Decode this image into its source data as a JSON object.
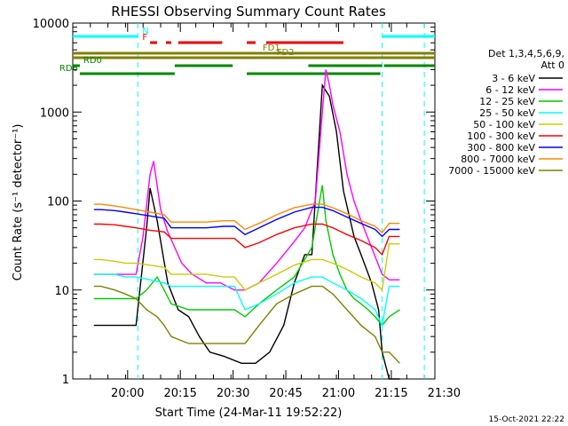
{
  "chart_data": {
    "type": "line",
    "title": "RHESSI Observing Summary Count Rates",
    "xlabel": "Start Time (24-Mar-11 19:52:22)",
    "ylabel": "Count Rate (s⁻¹ detector⁻¹)",
    "y_scale": "log",
    "xlim_min": [
      -8,
      95
    ],
    "ylim": [
      1,
      10000
    ],
    "x_ticks_min": [
      7.6,
      22.6,
      37.6,
      52.6,
      67.6,
      82.6,
      97.6
    ],
    "x_tick_labels": [
      "20:00",
      "20:15",
      "20:30",
      "20:45",
      "21:00",
      "21:15",
      "21:30"
    ],
    "y_ticks": [
      1,
      10,
      100,
      1000,
      10000
    ],
    "y_tick_labels": [
      "1",
      "10",
      "100",
      "1000",
      "10000"
    ],
    "legend_header": [
      "Det 1,3,4,5,6,9,",
      "Att 0"
    ],
    "series": [
      {
        "name": "3 - 6 keV",
        "color": "#000000",
        "x": [
          -2,
          0,
          4,
          7,
          10,
          13,
          14,
          16,
          19,
          22,
          25,
          28,
          31,
          35,
          40,
          44,
          48,
          52,
          55,
          58,
          60,
          63,
          65,
          67,
          69,
          72,
          74,
          77,
          79,
          80,
          82,
          85
        ],
        "y": [
          4,
          4,
          4,
          4,
          4,
          50,
          140,
          60,
          12,
          6,
          5,
          3,
          2,
          1.8,
          1.5,
          1.5,
          2,
          4,
          12,
          25,
          25,
          2000,
          1500,
          600,
          130,
          40,
          25,
          12,
          6,
          2,
          1,
          1
        ]
      },
      {
        "name": "6 - 12 keV",
        "color": "#ff00ff",
        "x": [
          -2,
          0,
          4,
          7,
          10,
          12,
          14,
          15,
          17,
          19,
          21,
          23,
          26,
          30,
          34,
          38,
          41,
          45,
          50,
          55,
          58,
          61,
          63,
          64,
          65,
          66,
          68,
          70,
          72,
          74,
          77,
          80,
          82,
          85
        ],
        "y": [
          15,
          15,
          15,
          15,
          15,
          40,
          200,
          280,
          80,
          45,
          30,
          20,
          15,
          12,
          12,
          10,
          10,
          12,
          20,
          35,
          50,
          100,
          1000,
          3000,
          2000,
          1200,
          600,
          200,
          100,
          60,
          30,
          15,
          13,
          13
        ]
      },
      {
        "name": "12 - 25 keV",
        "color": "#00cc00",
        "x": [
          -2,
          0,
          4,
          7,
          10,
          13,
          16,
          18,
          20,
          25,
          30,
          35,
          38,
          41,
          45,
          50,
          55,
          60,
          62,
          63,
          64,
          66,
          68,
          70,
          72,
          74,
          76,
          78,
          80,
          82,
          85
        ],
        "y": [
          8,
          8,
          8,
          8,
          8,
          10,
          14,
          10,
          7,
          6,
          6,
          6,
          6,
          5,
          7,
          10,
          14,
          30,
          90,
          150,
          60,
          25,
          15,
          10,
          8,
          7,
          6,
          5,
          4,
          5,
          6
        ]
      },
      {
        "name": "25 - 50 keV",
        "color": "#00ffff",
        "x": [
          -2,
          0,
          4,
          7,
          10,
          14,
          18,
          20,
          25,
          30,
          35,
          38,
          41,
          45,
          50,
          55,
          60,
          63,
          66,
          70,
          74,
          78,
          80,
          82,
          85
        ],
        "y": [
          15,
          15,
          15,
          14,
          14,
          13,
          12,
          11,
          11,
          11,
          11,
          11,
          6,
          7,
          9,
          12,
          14,
          14,
          12,
          10,
          8,
          6,
          4,
          11,
          11
        ]
      },
      {
        "name": "50 - 100 keV",
        "color": "#cccc00",
        "x": [
          -2,
          0,
          4,
          7,
          10,
          14,
          18,
          20,
          25,
          30,
          35,
          38,
          41,
          45,
          50,
          55,
          60,
          63,
          66,
          70,
          74,
          78,
          80,
          82,
          85
        ],
        "y": [
          22,
          22,
          21,
          20,
          20,
          19,
          18,
          15,
          15,
          15,
          14,
          14,
          10,
          12,
          15,
          19,
          22,
          22,
          20,
          17,
          14,
          12,
          10,
          33,
          33
        ]
      },
      {
        "name": "100 - 300 keV",
        "color": "#ff0000",
        "x": [
          -2,
          0,
          4,
          7,
          10,
          14,
          18,
          20,
          25,
          30,
          35,
          38,
          41,
          45,
          50,
          55,
          60,
          63,
          66,
          70,
          74,
          78,
          80,
          82,
          85
        ],
        "y": [
          55,
          55,
          54,
          52,
          50,
          47,
          45,
          38,
          38,
          38,
          38,
          38,
          30,
          34,
          42,
          50,
          55,
          55,
          50,
          42,
          36,
          30,
          25,
          40,
          40
        ]
      },
      {
        "name": "300 - 800 keV",
        "color": "#0000ff",
        "x": [
          -2,
          0,
          4,
          7,
          10,
          14,
          18,
          20,
          25,
          30,
          35,
          38,
          41,
          45,
          50,
          55,
          60,
          63,
          66,
          70,
          74,
          78,
          80,
          82,
          85
        ],
        "y": [
          80,
          80,
          78,
          75,
          72,
          68,
          64,
          50,
          50,
          50,
          52,
          52,
          42,
          50,
          62,
          75,
          85,
          85,
          78,
          66,
          56,
          48,
          40,
          48,
          48
        ]
      },
      {
        "name": "800 - 7000 keV",
        "color": "#ff8800",
        "x": [
          -2,
          0,
          4,
          7,
          10,
          14,
          18,
          20,
          25,
          30,
          35,
          38,
          41,
          45,
          50,
          55,
          60,
          63,
          66,
          70,
          74,
          78,
          80,
          82,
          85
        ],
        "y": [
          92,
          92,
          88,
          84,
          80,
          75,
          70,
          58,
          58,
          58,
          60,
          60,
          48,
          56,
          70,
          84,
          92,
          92,
          84,
          72,
          60,
          52,
          44,
          56,
          56
        ]
      },
      {
        "name": "7000 - 15000 keV",
        "color": "#808000",
        "x": [
          -2,
          0,
          4,
          7,
          10,
          13,
          16,
          18,
          20,
          25,
          30,
          35,
          38,
          41,
          45,
          50,
          55,
          60,
          63,
          66,
          70,
          74,
          78,
          80,
          82,
          85
        ],
        "y": [
          11,
          11,
          10,
          9,
          8,
          6,
          5,
          4,
          3,
          2.5,
          2.5,
          2.5,
          2.5,
          2.5,
          4,
          7,
          9,
          11,
          11,
          9,
          6,
          4,
          3,
          2,
          2,
          1.5
        ]
      }
    ],
    "flag_bars": [
      {
        "label": "N",
        "color": "#00ffff",
        "segments": [
          [
            -8,
            10.5
          ],
          [
            80,
            95
          ]
        ]
      },
      {
        "label": "F",
        "color": "#ee0000",
        "segments": [
          [
            14,
            16
          ],
          [
            18.5,
            20
          ],
          [
            22,
            34.5
          ],
          [
            41.5,
            44
          ],
          [
            47,
            69
          ]
        ]
      },
      {
        "label": "FD1",
        "color": "#808000",
        "segments": [
          [
            -8,
            95
          ]
        ]
      },
      {
        "label": "FD2",
        "color": "#808000",
        "segments": [
          [
            -8,
            95
          ]
        ]
      },
      {
        "label": "RD0",
        "color": "#008800",
        "segments": [
          [
            -8,
            -6
          ],
          [
            21,
            37.5
          ],
          [
            59,
            80
          ],
          [
            80.5,
            95
          ]
        ]
      },
      {
        "label": "RD6",
        "color": "#008800",
        "segments": [
          [
            -6,
            21
          ],
          [
            41.5,
            79.5
          ]
        ]
      }
    ],
    "vertical_markers_min": [
      10.5,
      80,
      92
    ]
  },
  "footer": {
    "date_stamp": "15-Oct-2021 22:22"
  }
}
